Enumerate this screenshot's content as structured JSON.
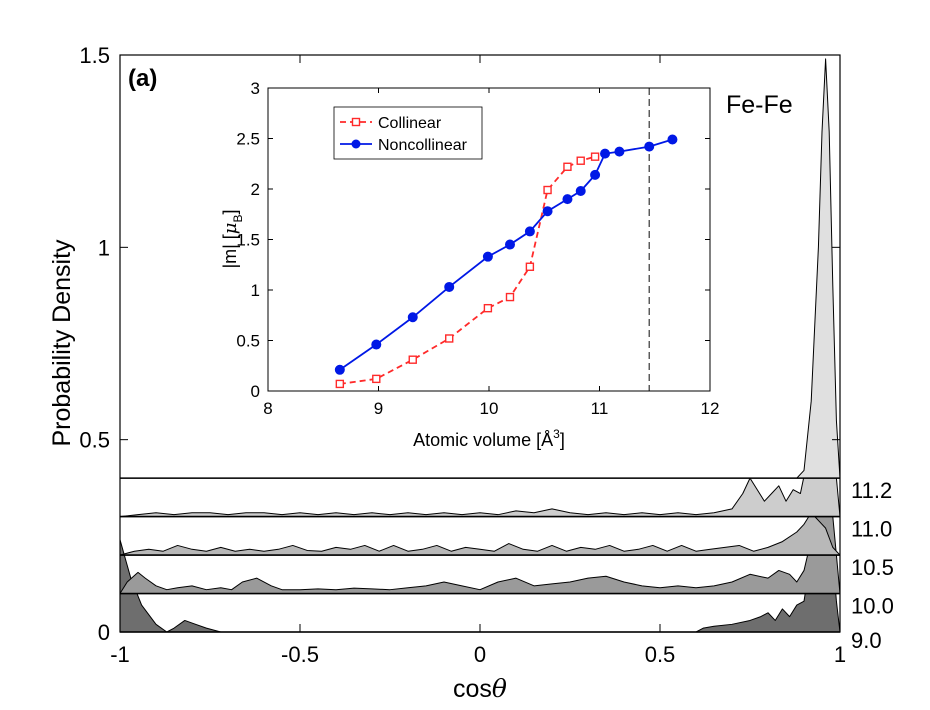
{
  "chart_data": [
    {
      "type": "area",
      "panel_label": "(a)",
      "annotation": "Fe-Fe",
      "xlabel": "cos",
      "xlabel_symbol": "θ",
      "ylabel": "Probability Density",
      "xlim": [
        -1,
        1
      ],
      "ylim": [
        0,
        1.5
      ],
      "xticks": [
        "-1",
        "-0.5",
        "0",
        "0.5",
        "1"
      ],
      "yticks": [
        "0",
        "0.5",
        "1",
        "1.5"
      ],
      "series": [
        {
          "name": "9.0",
          "baseline": 0,
          "color": "#6e6e6e",
          "x": [
            -1,
            -0.97,
            -0.94,
            -0.9,
            -0.87,
            -0.85,
            -0.82,
            -0.79,
            -0.76,
            -0.72,
            -0.68,
            -0.5,
            -0.2,
            0,
            0.2,
            0.4,
            0.55,
            0.6,
            0.62,
            0.65,
            0.7,
            0.75,
            0.78,
            0.8,
            0.82,
            0.84,
            0.86,
            0.88,
            0.9,
            0.92,
            0.94,
            0.96,
            0.97,
            0.98,
            0.99,
            1.0
          ],
          "y": [
            0.24,
            0.14,
            0.07,
            0.02,
            0.0,
            0.01,
            0.03,
            0.02,
            0.01,
            0.0,
            0.0,
            0.0,
            0.0,
            0.0,
            0.0,
            0.0,
            0.0,
            0.0,
            0.01,
            0.015,
            0.02,
            0.03,
            0.04,
            0.05,
            0.03,
            0.06,
            0.04,
            0.07,
            0.08,
            0.2,
            0.35,
            0.38,
            0.3,
            0.2,
            0.08,
            0.0
          ]
        },
        {
          "name": "10.0",
          "baseline": 0.1,
          "color": "#9a9a9a",
          "x": [
            -1,
            -0.98,
            -0.95,
            -0.93,
            -0.9,
            -0.87,
            -0.84,
            -0.8,
            -0.76,
            -0.72,
            -0.69,
            -0.66,
            -0.62,
            -0.58,
            -0.55,
            -0.5,
            -0.45,
            -0.4,
            -0.35,
            -0.3,
            -0.25,
            -0.2,
            -0.15,
            -0.1,
            -0.05,
            0,
            0.05,
            0.1,
            0.15,
            0.2,
            0.25,
            0.3,
            0.35,
            0.4,
            0.45,
            0.5,
            0.55,
            0.6,
            0.65,
            0.7,
            0.75,
            0.8,
            0.83,
            0.86,
            0.88,
            0.9,
            0.92,
            0.94,
            0.96,
            0.98,
            1.0
          ],
          "y": [
            0.1,
            0.13,
            0.155,
            0.14,
            0.12,
            0.11,
            0.115,
            0.12,
            0.11,
            0.115,
            0.11,
            0.13,
            0.14,
            0.12,
            0.11,
            0.11,
            0.112,
            0.11,
            0.114,
            0.112,
            0.11,
            0.115,
            0.12,
            0.13,
            0.12,
            0.11,
            0.13,
            0.14,
            0.12,
            0.125,
            0.13,
            0.14,
            0.145,
            0.13,
            0.12,
            0.115,
            0.12,
            0.115,
            0.12,
            0.13,
            0.15,
            0.14,
            0.16,
            0.15,
            0.13,
            0.16,
            0.24,
            0.34,
            0.38,
            0.3,
            0.1
          ]
        },
        {
          "name": "10.5",
          "baseline": 0.2,
          "color": "#b8b8b8",
          "x": [
            -1,
            -0.96,
            -0.92,
            -0.88,
            -0.84,
            -0.8,
            -0.76,
            -0.72,
            -0.68,
            -0.64,
            -0.6,
            -0.56,
            -0.52,
            -0.48,
            -0.44,
            -0.4,
            -0.36,
            -0.32,
            -0.28,
            -0.24,
            -0.2,
            -0.16,
            -0.12,
            -0.08,
            -0.04,
            0,
            0.04,
            0.08,
            0.12,
            0.16,
            0.2,
            0.24,
            0.28,
            0.32,
            0.36,
            0.4,
            0.44,
            0.48,
            0.52,
            0.56,
            0.6,
            0.64,
            0.68,
            0.72,
            0.76,
            0.8,
            0.84,
            0.88,
            0.9,
            0.92,
            0.94,
            0.96,
            0.98,
            1.0
          ],
          "y": [
            0.2,
            0.21,
            0.215,
            0.21,
            0.225,
            0.215,
            0.21,
            0.22,
            0.21,
            0.215,
            0.21,
            0.215,
            0.225,
            0.212,
            0.21,
            0.22,
            0.215,
            0.225,
            0.21,
            0.225,
            0.21,
            0.215,
            0.225,
            0.21,
            0.22,
            0.215,
            0.21,
            0.23,
            0.215,
            0.21,
            0.225,
            0.21,
            0.22,
            0.215,
            0.225,
            0.21,
            0.215,
            0.225,
            0.21,
            0.225,
            0.21,
            0.215,
            0.22,
            0.225,
            0.21,
            0.22,
            0.235,
            0.26,
            0.28,
            0.31,
            0.29,
            0.27,
            0.22,
            0.2
          ]
        },
        {
          "name": "11.0",
          "baseline": 0.3,
          "color": "#cdcdcd",
          "x": [
            -1,
            -0.95,
            -0.9,
            -0.85,
            -0.8,
            -0.75,
            -0.7,
            -0.65,
            -0.6,
            -0.55,
            -0.5,
            -0.45,
            -0.4,
            -0.35,
            -0.3,
            -0.25,
            -0.2,
            -0.15,
            -0.1,
            -0.05,
            0,
            0.05,
            0.1,
            0.15,
            0.2,
            0.25,
            0.3,
            0.35,
            0.4,
            0.45,
            0.5,
            0.55,
            0.6,
            0.65,
            0.7,
            0.73,
            0.75,
            0.77,
            0.79,
            0.81,
            0.83,
            0.85,
            0.87,
            0.89,
            0.91,
            0.93,
            0.95,
            0.97,
            0.99,
            1.0
          ],
          "y": [
            0.3,
            0.305,
            0.31,
            0.305,
            0.31,
            0.31,
            0.305,
            0.31,
            0.31,
            0.305,
            0.31,
            0.305,
            0.31,
            0.305,
            0.31,
            0.305,
            0.31,
            0.305,
            0.31,
            0.305,
            0.31,
            0.305,
            0.315,
            0.31,
            0.32,
            0.31,
            0.305,
            0.31,
            0.305,
            0.31,
            0.305,
            0.31,
            0.305,
            0.31,
            0.32,
            0.36,
            0.4,
            0.37,
            0.34,
            0.36,
            0.38,
            0.34,
            0.37,
            0.36,
            0.45,
            0.52,
            0.59,
            0.54,
            0.4,
            0.3
          ]
        },
        {
          "name": "11.2",
          "baseline": 0.4,
          "color": "#e0e0e0",
          "x": [
            -1,
            -0.5,
            0,
            0.5,
            0.85,
            0.88,
            0.9,
            0.92,
            0.94,
            0.95,
            0.96,
            0.97,
            0.98,
            0.99,
            1.0
          ],
          "y": [
            0.4,
            0.4,
            0.4,
            0.4,
            0.4,
            0.4,
            0.42,
            0.6,
            1.0,
            1.3,
            1.49,
            1.3,
            0.9,
            0.55,
            0.4
          ]
        }
      ]
    },
    {
      "type": "line",
      "xlabel": "Atomic volume [Å",
      "xlabel_sup": "3",
      "xlabel_end": "]",
      "ylabel": "|m| [",
      "ylabel_sym": "μ",
      "ylabel_sub": "B",
      "ylabel_end": "]",
      "xlim": [
        8,
        12
      ],
      "ylim": [
        0,
        3
      ],
      "xticks": [
        "8",
        "9",
        "10",
        "11",
        "12"
      ],
      "yticks": [
        "0",
        "0.5",
        "1",
        "1.5",
        "2",
        "2.5",
        "3"
      ],
      "vline_x": 11.45,
      "series": [
        {
          "name": "Collinear",
          "color": "#ff2a2a",
          "dashed": true,
          "marker": "square",
          "x": [
            8.65,
            8.98,
            9.31,
            9.64,
            9.99,
            10.19,
            10.37,
            10.53,
            10.71,
            10.83,
            10.96
          ],
          "y": [
            0.07,
            0.12,
            0.31,
            0.52,
            0.82,
            0.93,
            1.23,
            1.99,
            2.22,
            2.28,
            2.32
          ]
        },
        {
          "name": "Noncollinear",
          "color": "#0018e6",
          "dashed": false,
          "marker": "circle",
          "x": [
            8.65,
            8.98,
            9.31,
            9.64,
            9.99,
            10.19,
            10.37,
            10.53,
            10.71,
            10.83,
            10.96,
            11.05,
            11.18,
            11.45,
            11.66
          ],
          "y": [
            0.21,
            0.46,
            0.73,
            1.03,
            1.33,
            1.45,
            1.58,
            1.78,
            1.9,
            1.98,
            2.14,
            2.35,
            2.37,
            2.42,
            2.49
          ]
        }
      ]
    }
  ]
}
